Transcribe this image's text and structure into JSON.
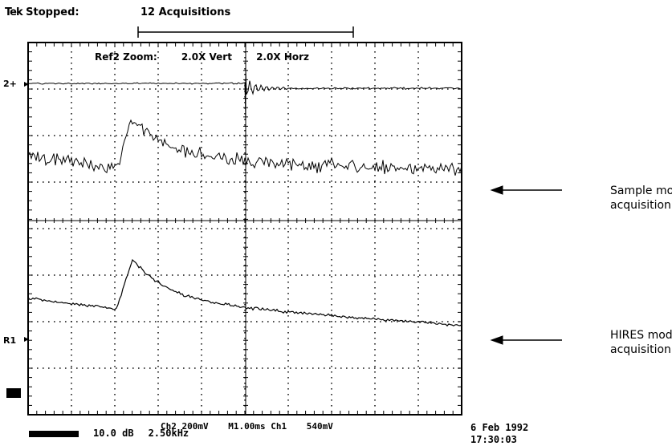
{
  "header": {
    "tek": "Tek",
    "status": "Stopped:",
    "acquisitions": "12 Acquisitions"
  },
  "zoom": {
    "label": "Ref2 Zoom:",
    "vert": "2.0X Vert",
    "horz": "2.0X Horz"
  },
  "markers": {
    "ch2": "2+",
    "r1": "R1"
  },
  "readout": {
    "ch2_scale": "Ch2  200mV",
    "timebase": "M1.00ms  Ch1",
    "trigger_level": "540mV",
    "date": "6 Feb 1992",
    "time": "17:30:03",
    "math_db": "10.0 dB",
    "math_freq": "2.50kHz"
  },
  "annotations": {
    "sample_line1": "Sample mode",
    "sample_line2": "acquisition",
    "hires_line1": "HIRES mode",
    "hires_line2": "acquisition"
  },
  "colors": {
    "trace": "#000000",
    "grid": "#000000",
    "background": "#ffffff"
  }
}
